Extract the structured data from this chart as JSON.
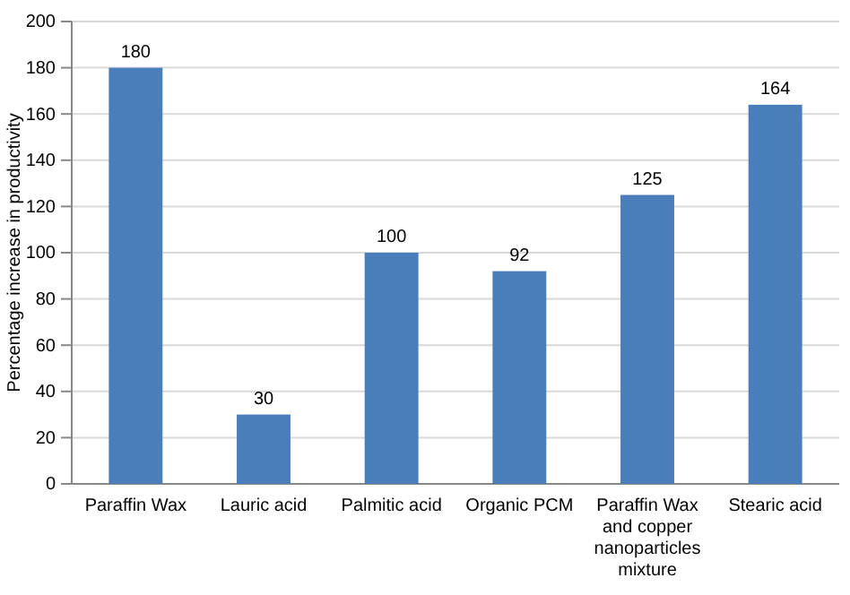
{
  "chart_data": {
    "type": "bar",
    "ylabel": "Percentage increase in productivity",
    "categories": [
      "Paraffin Wax",
      "Lauric acid",
      "Palmitic acid",
      "Organic PCM",
      "Paraffin Wax and copper nanoparticles mixture",
      "Stearic acid"
    ],
    "values": [
      180,
      30,
      100,
      92,
      125,
      164
    ],
    "color": "#4a7ebb",
    "ylim": [
      0,
      200
    ],
    "yticks": [
      0,
      20,
      40,
      60,
      80,
      100,
      120,
      140,
      160,
      180,
      200
    ],
    "grid": "y",
    "data_labels": true
  }
}
